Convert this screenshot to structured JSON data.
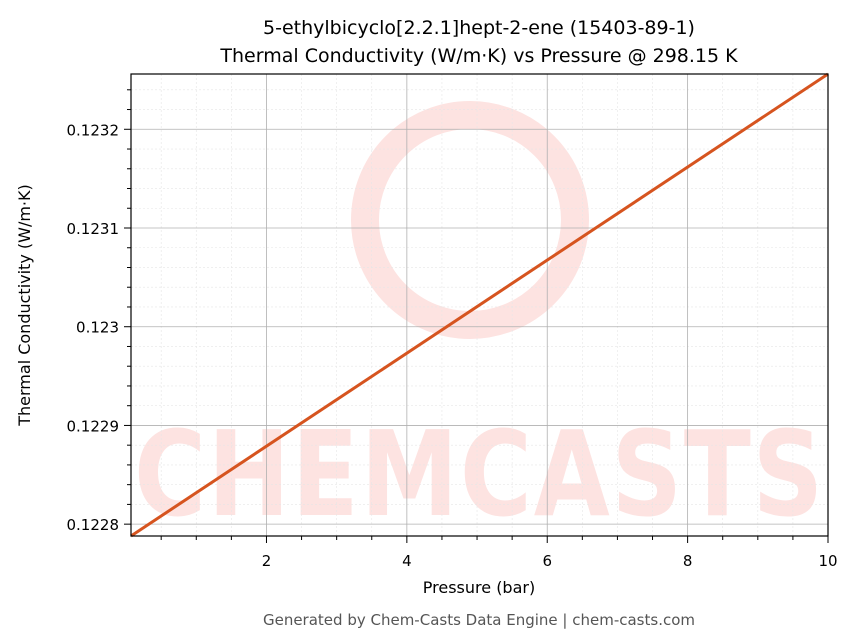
{
  "chart_data": {
    "type": "line",
    "title": "5-ethylbicyclo[2.2.1]hept-2-ene (15403-89-1)",
    "subtitle": "Thermal Conductivity (W/m·K) vs Pressure @ 298.15 K",
    "x_label": "Pressure (bar)",
    "y_label": "Thermal Conductivity (W/m·K)",
    "watermark": "CHEMCASTS",
    "footer": "Generated by Chem-Casts Data Engine | chem-casts.com",
    "x": [
      0.07,
      10
    ],
    "series": [
      {
        "name": "Thermal Conductivity",
        "color": "#d6541f",
        "values": [
          0.122788,
          0.123256
        ]
      }
    ],
    "xlim": [
      0.07,
      10
    ],
    "ylim": [
      0.122788,
      0.123256
    ],
    "xticks": [
      2,
      4,
      6,
      8,
      10
    ],
    "yticks": [
      0.1228,
      0.1229,
      0.123,
      0.1231,
      0.1232
    ],
    "xminorticks": [
      0.5,
      1,
      1.5,
      2.5,
      3,
      3.5,
      4.5,
      5,
      5.5,
      6.5,
      7,
      7.5,
      8.5,
      9,
      9.5
    ],
    "yminorticks": [
      0.12282,
      0.12284,
      0.12286,
      0.12288,
      0.12292,
      0.12294,
      0.12296,
      0.12298,
      0.12302,
      0.12304,
      0.12306,
      0.12308,
      0.12312,
      0.12314,
      0.12316,
      0.12318,
      0.12322,
      0.12324
    ],
    "grid": true
  }
}
